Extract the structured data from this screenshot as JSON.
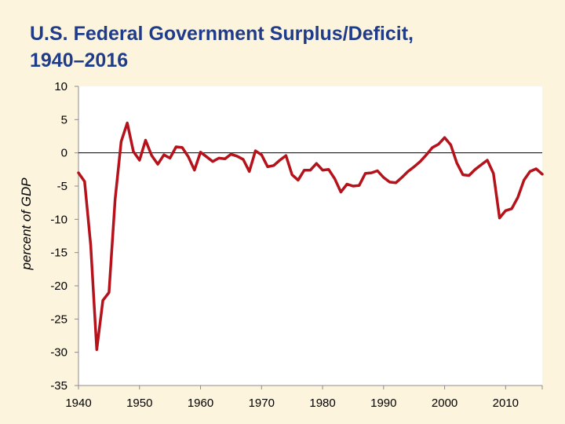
{
  "chart_data": {
    "type": "line",
    "title": "U.S. Federal Government  Surplus/Deficit,",
    "subtitle": "1940–2016",
    "xlabel": "",
    "ylabel": "percent of GDP",
    "xlim": [
      1940,
      2016
    ],
    "ylim": [
      -35,
      10
    ],
    "x_ticks": [
      1940,
      1950,
      1960,
      1970,
      1980,
      1990,
      2000,
      2010
    ],
    "y_ticks": [
      10,
      5,
      0,
      -5,
      -10,
      -15,
      -20,
      -25,
      -30,
      -35
    ],
    "grid": false,
    "zero_line": true,
    "line_color": "#B5121B",
    "series": [
      {
        "name": "",
        "x": [
          1940,
          1941,
          1942,
          1943,
          1944,
          1945,
          1946,
          1947,
          1948,
          1949,
          1950,
          1951,
          1952,
          1953,
          1954,
          1955,
          1956,
          1957,
          1958,
          1959,
          1960,
          1961,
          1962,
          1963,
          1964,
          1965,
          1966,
          1967,
          1968,
          1969,
          1970,
          1971,
          1972,
          1973,
          1974,
          1975,
          1976,
          1977,
          1978,
          1979,
          1980,
          1981,
          1982,
          1983,
          1984,
          1985,
          1986,
          1987,
          1988,
          1989,
          1990,
          1991,
          1992,
          1993,
          1994,
          1995,
          1996,
          1997,
          1998,
          1999,
          2000,
          2001,
          2002,
          2003,
          2004,
          2005,
          2006,
          2007,
          2008,
          2009,
          2010,
          2011,
          2012,
          2013,
          2014,
          2015,
          2016
        ],
        "values": [
          -3.0,
          -4.3,
          -13.9,
          -29.6,
          -22.2,
          -21.0,
          -7.0,
          1.7,
          4.5,
          0.2,
          -1.1,
          1.9,
          -0.4,
          -1.7,
          -0.3,
          -0.8,
          0.9,
          0.8,
          -0.6,
          -2.6,
          0.1,
          -0.6,
          -1.3,
          -0.8,
          -0.9,
          -0.2,
          -0.5,
          -1.0,
          -2.8,
          0.3,
          -0.3,
          -2.1,
          -1.9,
          -1.1,
          -0.4,
          -3.3,
          -4.1,
          -2.6,
          -2.6,
          -1.6,
          -2.6,
          -2.5,
          -3.9,
          -5.9,
          -4.7,
          -5.0,
          -4.9,
          -3.1,
          -3.0,
          -2.7,
          -3.7,
          -4.4,
          -4.5,
          -3.7,
          -2.8,
          -2.1,
          -1.3,
          -0.3,
          0.8,
          1.3,
          2.3,
          1.2,
          -1.5,
          -3.3,
          -3.4,
          -2.5,
          -1.8,
          -1.1,
          -3.1,
          -9.8,
          -8.7,
          -8.4,
          -6.7,
          -4.1,
          -2.8,
          -2.4,
          -3.2
        ]
      }
    ]
  }
}
